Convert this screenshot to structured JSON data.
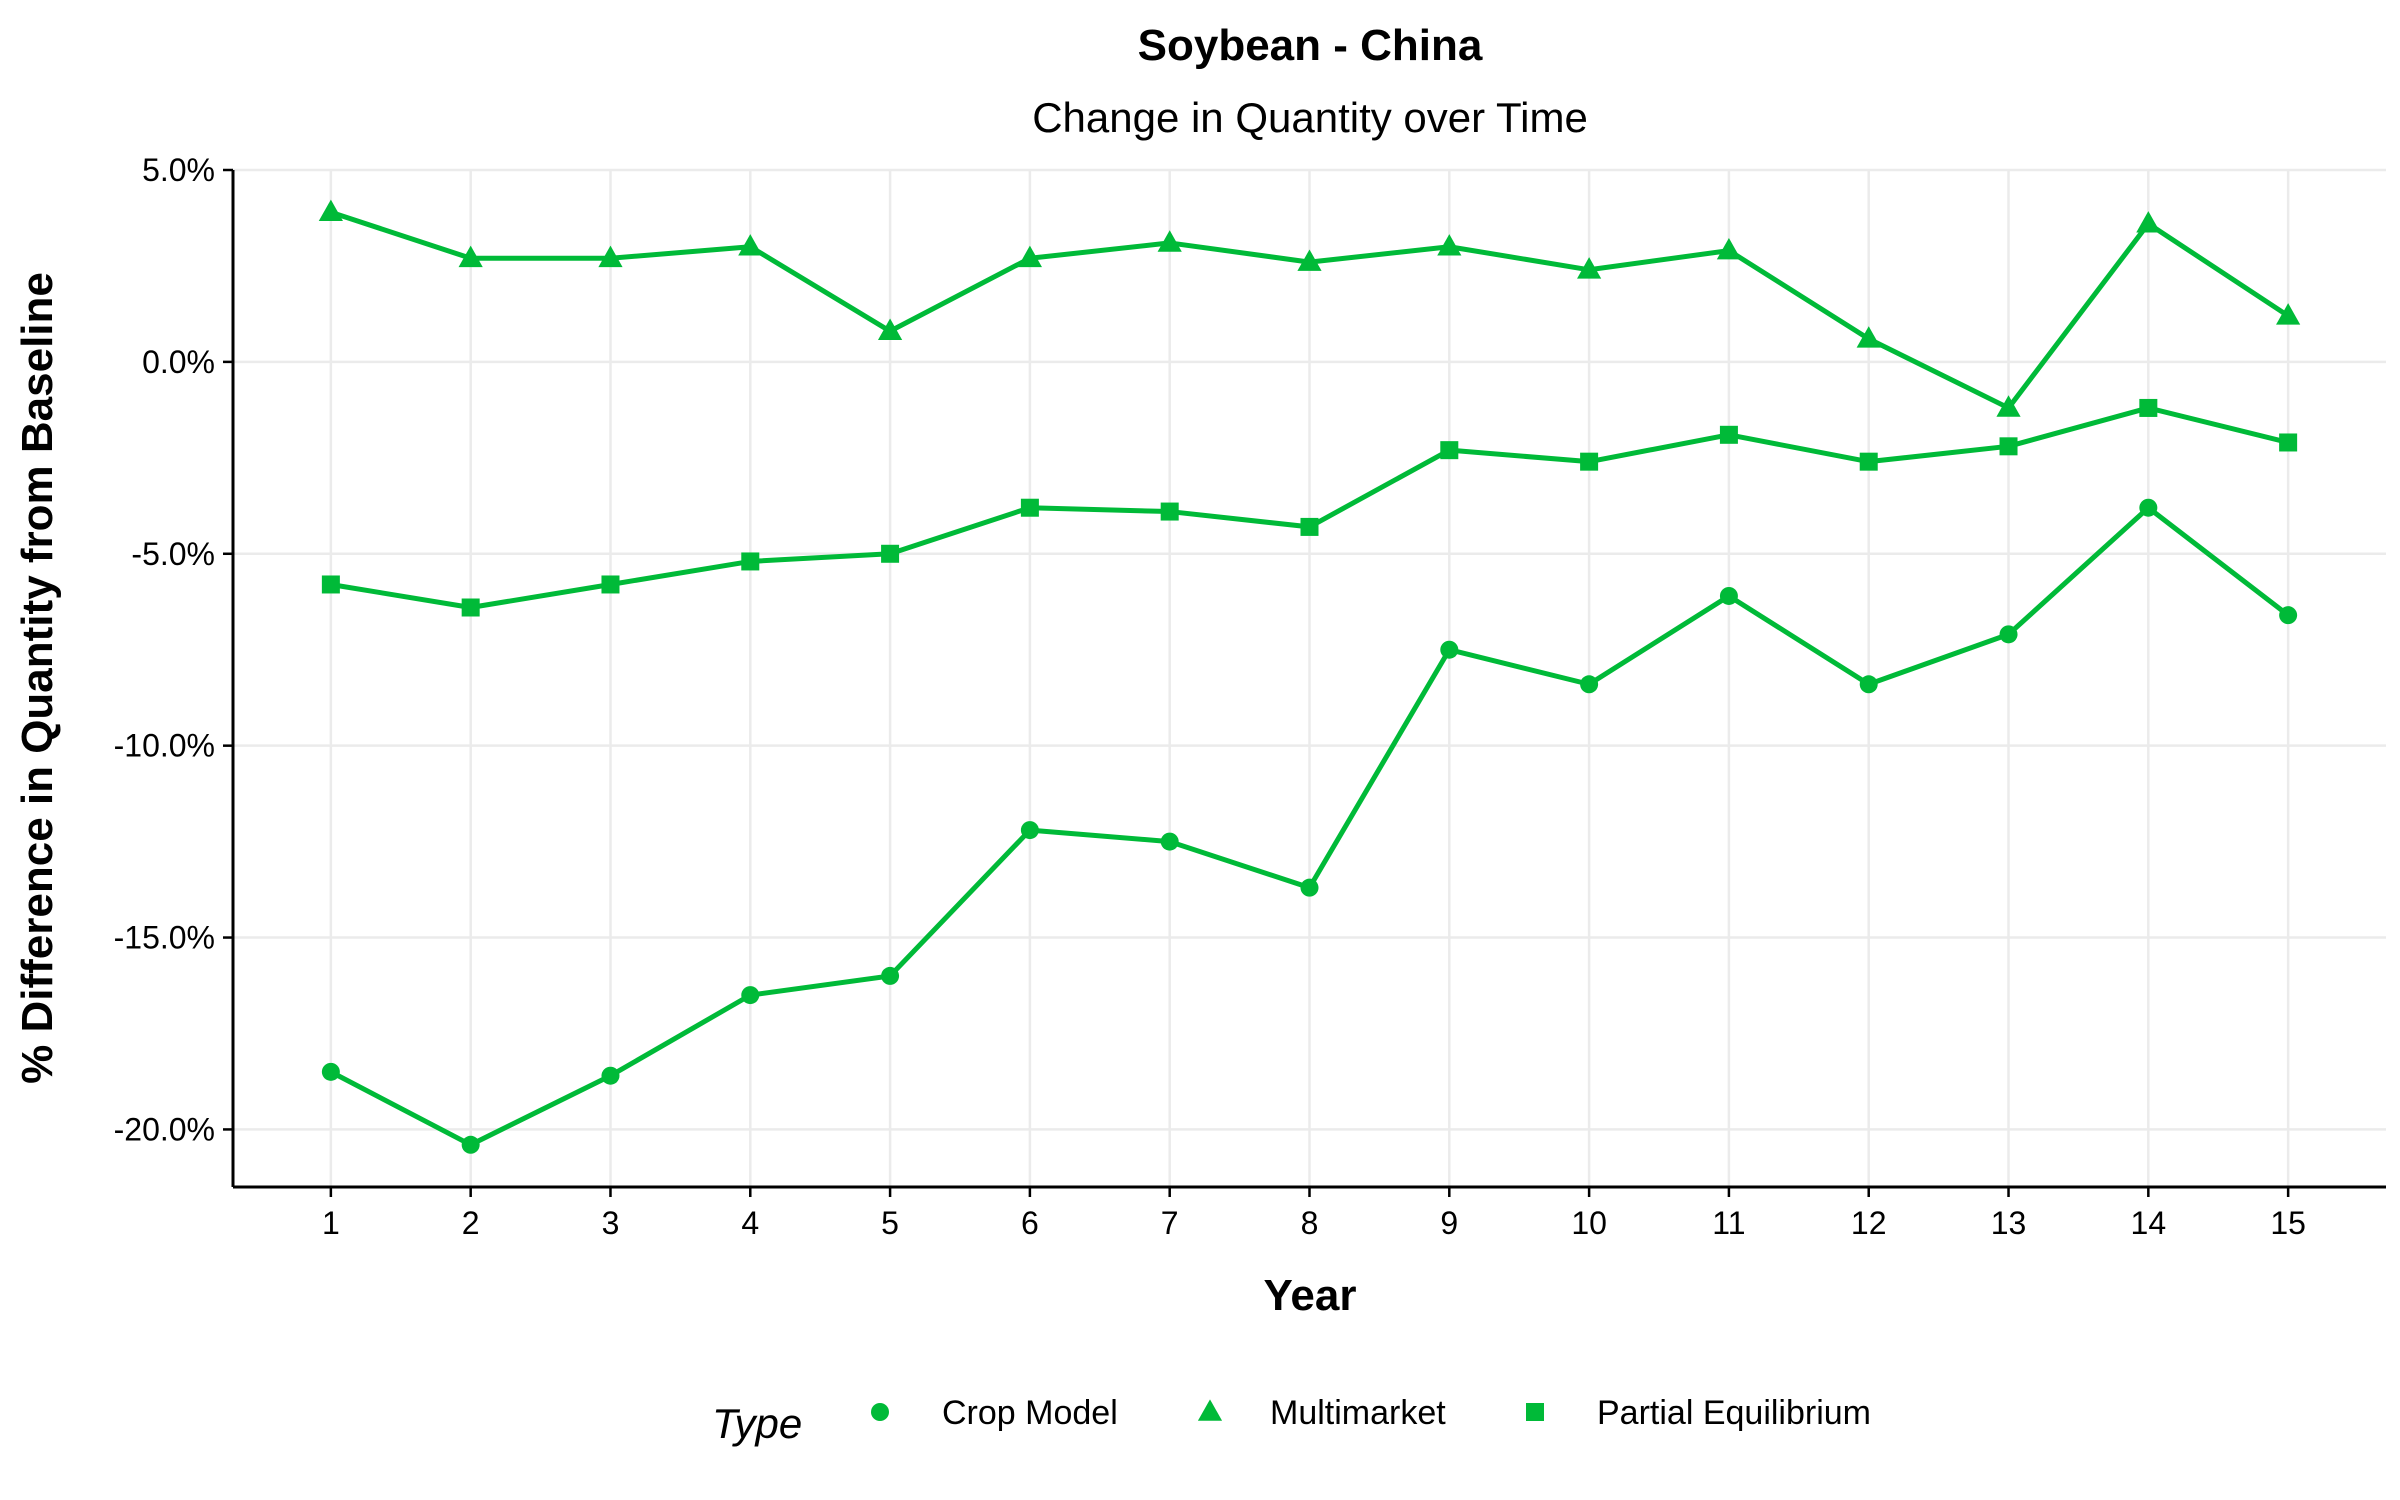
{
  "chart_data": {
    "type": "line",
    "title": "Soybean - China",
    "subtitle": "Change in Quantity over Time",
    "xlabel": "Year",
    "ylabel": "% Difference in Quantity from Baseline",
    "x": [
      1,
      2,
      3,
      4,
      5,
      6,
      7,
      8,
      9,
      10,
      11,
      12,
      13,
      14,
      15
    ],
    "xlim": [
      0.3,
      15.7
    ],
    "ylim": [
      -21.5,
      5.0
    ],
    "yticks": [
      5.0,
      0.0,
      -5.0,
      -10.0,
      -15.0,
      -20.0
    ],
    "ytick_labels": [
      "5.0%",
      "0.0%",
      "-5.0%",
      "-10.0%",
      "-15.0%",
      "-20.0%"
    ],
    "grid": true,
    "legend": {
      "title": "Type",
      "placement": "bottom"
    },
    "color": "#00ba38",
    "series": [
      {
        "name": "Crop Model",
        "marker": "circle",
        "values": [
          -18.5,
          -20.4,
          -18.6,
          -16.5,
          -16.0,
          -12.2,
          -12.5,
          -13.7,
          -7.5,
          -8.4,
          -6.1,
          -8.4,
          -7.1,
          -3.8,
          -6.6
        ]
      },
      {
        "name": "Multimarket",
        "marker": "triangle",
        "values": [
          3.9,
          2.7,
          2.7,
          3.0,
          0.8,
          2.7,
          3.1,
          2.6,
          3.0,
          2.4,
          2.9,
          0.6,
          -1.2,
          3.6,
          1.2
        ]
      },
      {
        "name": "Partial Equilibrium",
        "marker": "square",
        "values": [
          -5.8,
          -6.4,
          -5.8,
          -5.2,
          -5.0,
          -3.8,
          -3.9,
          -4.3,
          -2.3,
          -2.6,
          -1.9,
          -2.6,
          -2.2,
          -1.2,
          -2.1
        ]
      }
    ]
  }
}
